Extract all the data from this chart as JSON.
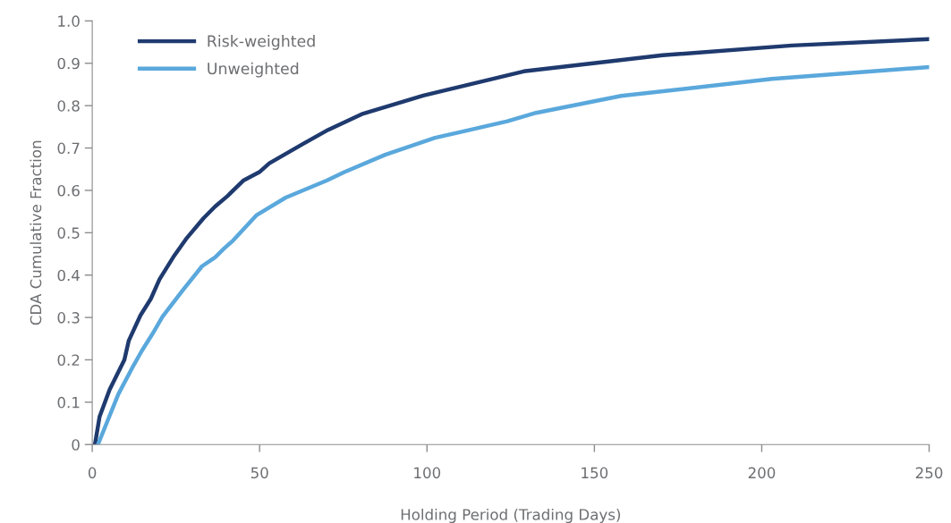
{
  "chart_data": {
    "type": "line",
    "xlabel": "Holding Period (Trading Days)",
    "ylabel": "CDA Cumulative Fraction",
    "xlim": [
      0,
      250
    ],
    "xticks": [
      0,
      50,
      100,
      150,
      200,
      250
    ],
    "ylim": [
      0,
      1.0
    ],
    "yticks": [
      0,
      0.1,
      0.2,
      0.3,
      0.4,
      0.5,
      0.6,
      0.7,
      0.8,
      0.9,
      {
        "value": 1.0,
        "label": "1.0"
      }
    ],
    "grid": false,
    "legend": "top left",
    "marker": "none",
    "line_style": "solid",
    "series": [
      {
        "name": "Risk-weighted",
        "color": "#1f3a6e",
        "x": [
          0.8,
          2.2,
          5.2,
          9.6,
          10.9,
          14.4,
          17.5,
          20.1,
          24.5,
          28.0,
          33.2,
          36.7,
          40.3,
          45.1,
          49.9,
          52.9,
          63.0,
          70.5,
          80.5,
          98.9,
          128.9,
          170.4,
          209,
          250
        ],
        "values": [
          0,
          0.066,
          0.13,
          0.2,
          0.245,
          0.305,
          0.344,
          0.39,
          0.446,
          0.485,
          0.534,
          0.562,
          0.586,
          0.623,
          0.643,
          0.664,
          0.71,
          0.743,
          0.78,
          0.824,
          0.881,
          0.919,
          0.942,
          0.957
        ]
      },
      {
        "name": "Unweighted",
        "color": "#5aa8dc",
        "x": [
          1.7,
          7.8,
          11.8,
          14.8,
          17.9,
          21.0,
          27.1,
          32.8,
          36.7,
          39.4,
          42.0,
          49.0,
          57.8,
          70.0,
          75.3,
          87.5,
          102.4,
          124,
          132.6,
          158,
          203,
          250
        ],
        "values": [
          0,
          0.119,
          0.179,
          0.221,
          0.26,
          0.302,
          0.365,
          0.421,
          0.442,
          0.463,
          0.481,
          0.541,
          0.583,
          0.623,
          0.643,
          0.684,
          0.724,
          0.763,
          0.783,
          0.823,
          0.863,
          0.891
        ]
      }
    ]
  }
}
